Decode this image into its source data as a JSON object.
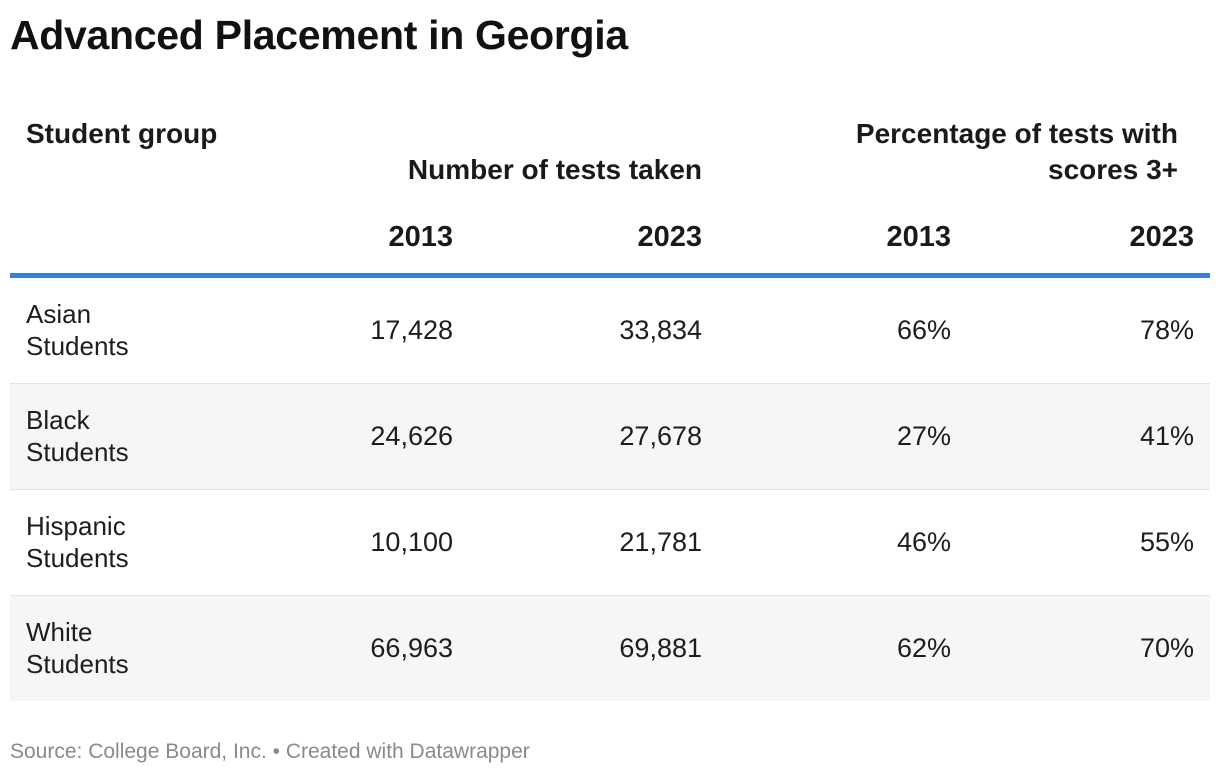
{
  "title": "Advanced Placement in Georgia",
  "table": {
    "header": {
      "group": "Student group",
      "num_tests": "Number of tests taken",
      "pct_scores": "Percentage of tests with scores 3+"
    },
    "years": [
      "2013",
      "2023",
      "2013",
      "2023"
    ],
    "rows": [
      {
        "group": "Asian Students",
        "tests_2013": "17,428",
        "tests_2023": "33,834",
        "pct_2013": "66%",
        "pct_2023": "78%"
      },
      {
        "group": "Black Students",
        "tests_2013": "24,626",
        "tests_2023": "27,678",
        "pct_2013": "27%",
        "pct_2023": "41%"
      },
      {
        "group": "Hispanic Students",
        "tests_2013": "10,100",
        "tests_2023": "21,781",
        "pct_2013": "46%",
        "pct_2023": "55%"
      },
      {
        "group": "White Students",
        "tests_2013": "66,963",
        "tests_2023": "69,881",
        "pct_2013": "62%",
        "pct_2023": "70%"
      }
    ]
  },
  "source": "Source: College Board, Inc. • Created with Datawrapper",
  "colors": {
    "header_rule": "#3d7fd6",
    "alt_row_bg": "#f6f6f6",
    "row_divider": "#e3e3e3",
    "source_text": "#8a8a8a"
  },
  "chart_data": {
    "type": "table",
    "title": "Advanced Placement in Georgia",
    "columns": [
      "Student group",
      "Number of tests taken 2013",
      "Number of tests taken 2023",
      "Percentage of tests with scores 3+ 2013",
      "Percentage of tests with scores 3+ 2023"
    ],
    "rows": [
      [
        "Asian Students",
        17428,
        33834,
        66,
        78
      ],
      [
        "Black Students",
        24626,
        27678,
        27,
        41
      ],
      [
        "Hispanic Students",
        10100,
        21781,
        46,
        55
      ],
      [
        "White Students",
        66963,
        69881,
        62,
        70
      ]
    ]
  }
}
